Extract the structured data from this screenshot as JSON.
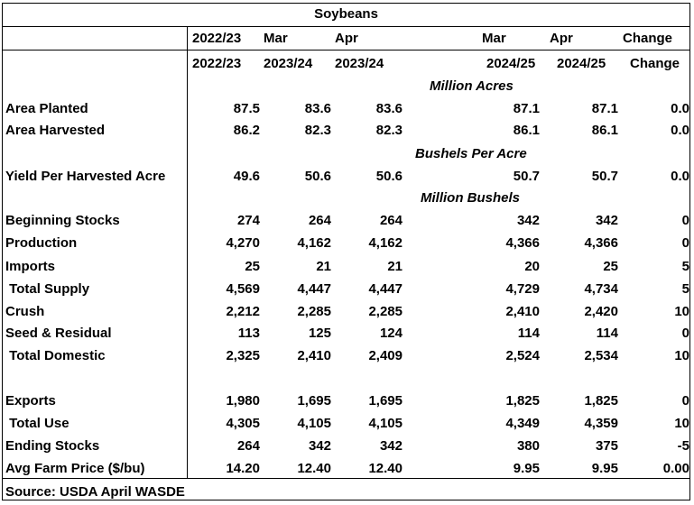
{
  "title": "Soybeans",
  "header": {
    "row1": [
      "2022/23",
      "Mar",
      "Apr",
      "Mar",
      "Apr",
      "Change"
    ],
    "row2": [
      "2022/23",
      "2023/24",
      "2023/24",
      "2024/25",
      "2024/25",
      "Change"
    ]
  },
  "units": {
    "acres": "Million Acres",
    "yield": "Bushels Per Acre",
    "bushels": "Million Bushels"
  },
  "rows": [
    {
      "label": "Area Planted",
      "values": [
        "87.5",
        "83.6",
        "83.6",
        "87.1",
        "87.1",
        "0.0"
      ]
    },
    {
      "label": "Area Harvested",
      "values": [
        "86.2",
        "82.3",
        "82.3",
        "86.1",
        "86.1",
        "0.0"
      ]
    },
    {
      "label": "Yield Per Harvested Acre",
      "values": [
        "49.6",
        "50.6",
        "50.6",
        "50.7",
        "50.7",
        "0.0"
      ]
    },
    {
      "label": "Beginning Stocks",
      "values": [
        "274",
        "264",
        "264",
        "342",
        "342",
        "0"
      ]
    },
    {
      "label": "Production",
      "values": [
        "4,270",
        "4,162",
        "4,162",
        "4,366",
        "4,366",
        "0"
      ]
    },
    {
      "label": "Imports",
      "values": [
        "25",
        "21",
        "21",
        "20",
        "25",
        "5"
      ]
    },
    {
      "label": " Total Supply",
      "values": [
        "4,569",
        "4,447",
        "4,447",
        "4,729",
        "4,734",
        "5"
      ]
    },
    {
      "label": "Crush",
      "values": [
        "2,212",
        "2,285",
        "2,285",
        "2,410",
        "2,420",
        "10"
      ]
    },
    {
      "label": "Seed & Residual",
      "values": [
        "113",
        "125",
        "124",
        "114",
        "114",
        "0"
      ]
    },
    {
      "label": " Total Domestic",
      "values": [
        "2,325",
        "2,410",
        "2,409",
        "2,524",
        "2,534",
        "10"
      ]
    },
    {
      "label": "Exports",
      "values": [
        "1,980",
        "1,695",
        "1,695",
        "1,825",
        "1,825",
        "0"
      ]
    },
    {
      "label": " Total Use",
      "values": [
        "4,305",
        "4,105",
        "4,105",
        "4,349",
        "4,359",
        "10"
      ]
    },
    {
      "label": "Ending Stocks",
      "values": [
        "264",
        "342",
        "342",
        "380",
        "375",
        "-5"
      ]
    },
    {
      "label": "Avg Farm Price ($/bu)",
      "values": [
        "14.20",
        "12.40",
        "12.40",
        "9.95",
        "9.95",
        "0.00"
      ]
    }
  ],
  "source": "Source: USDA April WASDE"
}
